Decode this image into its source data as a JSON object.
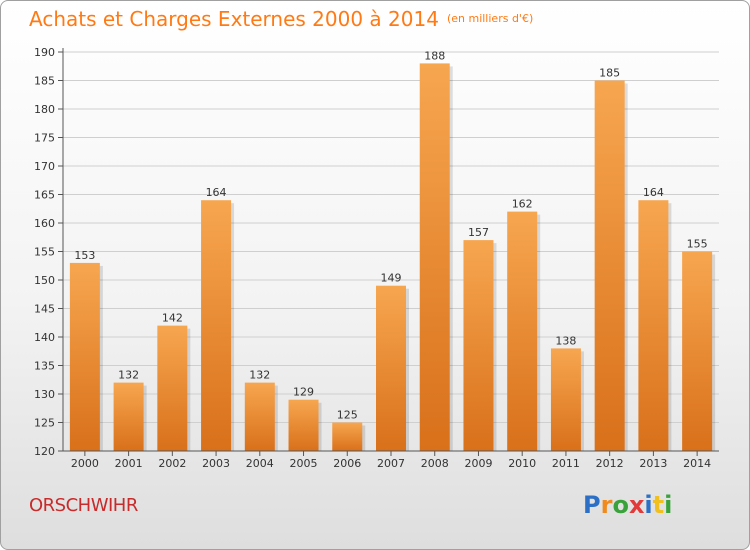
{
  "title": "Achats et Charges Externes 2000 à 2014",
  "unit": "(en milliers d'€)",
  "place": "ORSCHWIHR",
  "logo": {
    "text": "Proxiti",
    "letters": [
      {
        "ch": "P",
        "color": "#2c6fc6"
      },
      {
        "ch": "r",
        "color": "#f08a1c"
      },
      {
        "ch": "o",
        "color": "#3aa23a"
      },
      {
        "ch": "x",
        "color": "#e23a3a"
      },
      {
        "ch": "i",
        "color": "#2c6fc6"
      },
      {
        "ch": "t",
        "color": "#f0c020"
      },
      {
        "ch": "i",
        "color": "#3aa23a"
      }
    ]
  },
  "colors": {
    "title": "#ff7a14",
    "place": "#c92a2a",
    "bar_light": "#f7a650",
    "bar_dark": "#d9701a",
    "grid": "#cfcfcf",
    "axis": "#555555"
  },
  "chart_data": {
    "type": "bar",
    "categories": [
      "2000",
      "2001",
      "2002",
      "2003",
      "2004",
      "2005",
      "2006",
      "2007",
      "2008",
      "2009",
      "2010",
      "2011",
      "2012",
      "2013",
      "2014"
    ],
    "values": [
      153,
      132,
      142,
      164,
      132,
      129,
      125,
      149,
      188,
      157,
      162,
      138,
      185,
      164,
      155
    ],
    "ylim": [
      120,
      190
    ],
    "yticks": [
      120,
      125,
      130,
      135,
      140,
      145,
      150,
      155,
      160,
      165,
      170,
      175,
      180,
      185,
      190
    ],
    "grid": true,
    "show_value_labels": true
  }
}
